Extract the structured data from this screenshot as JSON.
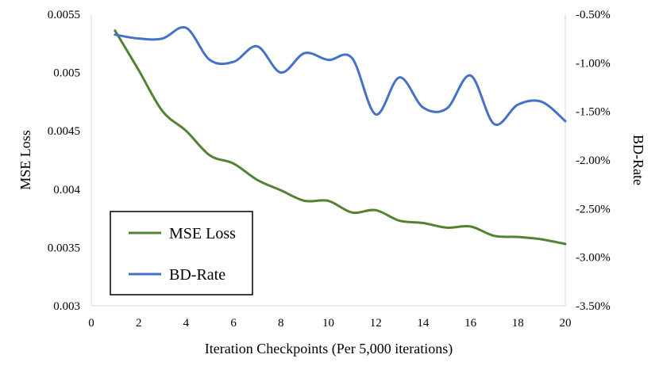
{
  "chart_data": {
    "type": "line",
    "x": [
      1,
      2,
      3,
      4,
      5,
      6,
      7,
      8,
      9,
      10,
      11,
      12,
      13,
      14,
      15,
      16,
      17,
      18,
      19,
      20
    ],
    "series": [
      {
        "name": "MSE Loss",
        "axis": "left",
        "color": "#548235",
        "values": [
          0.00536,
          0.00502,
          0.00467,
          0.0045,
          0.00429,
          0.00422,
          0.00408,
          0.00399,
          0.0039,
          0.0039,
          0.0038,
          0.00382,
          0.00373,
          0.00371,
          0.00367,
          0.00368,
          0.0036,
          0.00359,
          0.00357,
          0.00353
        ]
      },
      {
        "name": "BD-Rate",
        "axis": "right",
        "color": "#4472C4",
        "values": [
          -0.71,
          -0.75,
          -0.75,
          -0.64,
          -0.97,
          -0.99,
          -0.83,
          -1.1,
          -0.9,
          -0.97,
          -0.95,
          -1.53,
          -1.15,
          -1.46,
          -1.47,
          -1.13,
          -1.63,
          -1.43,
          -1.4,
          -1.6
        ]
      }
    ],
    "title": "",
    "xlabel": "Iteration Checkpoints (Per 5,000 iterations)",
    "ylabel": "MSE Loss",
    "y2label": "BD-Rate",
    "xlim": [
      0,
      20
    ],
    "xticks": [
      "0",
      "2",
      "4",
      "6",
      "8",
      "10",
      "12",
      "14",
      "16",
      "18",
      "20"
    ],
    "ylim": [
      0.003,
      0.0055
    ],
    "yticks": [
      "0.003",
      "0.0035",
      "0.004",
      "0.0045",
      "0.005",
      "0.0055"
    ],
    "y2lim": [
      -3.5,
      -0.5
    ],
    "y2ticks": [
      "-3.50%",
      "-3.00%",
      "-2.50%",
      "-2.00%",
      "-1.50%",
      "-1.00%",
      "-0.50%"
    ],
    "grid": false,
    "legend": {
      "position": "bottom-left",
      "entries": [
        "MSE Loss",
        "BD-Rate"
      ]
    }
  }
}
